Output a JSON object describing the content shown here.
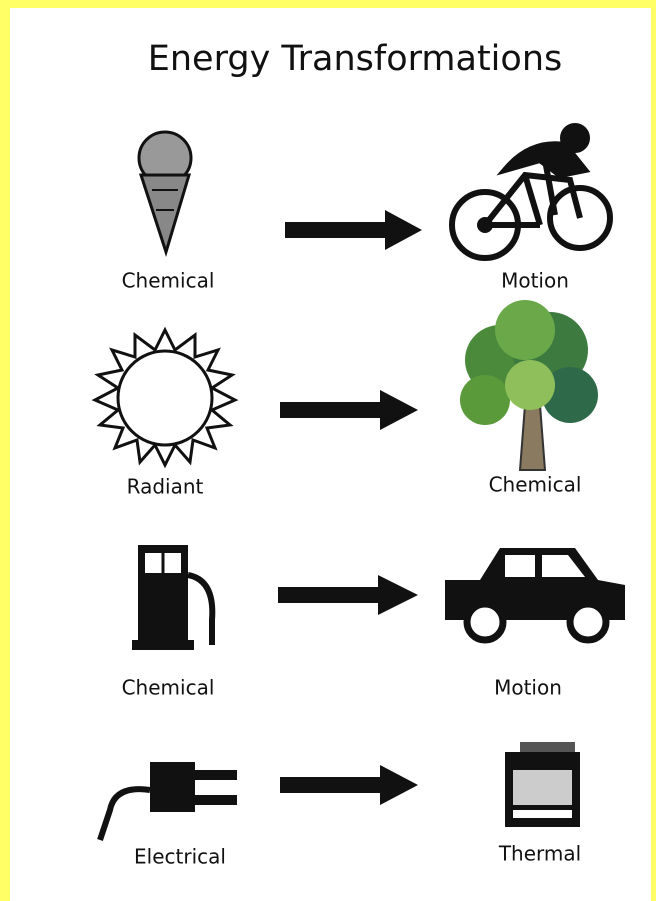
{
  "title": "Energy Transformations",
  "rows": [
    {
      "from": "Chemical",
      "to": "Motion"
    },
    {
      "from": "Radiant",
      "to": "Chemical"
    },
    {
      "from": "Chemical",
      "to": "Motion"
    },
    {
      "from": "Electrical",
      "to": "Thermal"
    }
  ]
}
